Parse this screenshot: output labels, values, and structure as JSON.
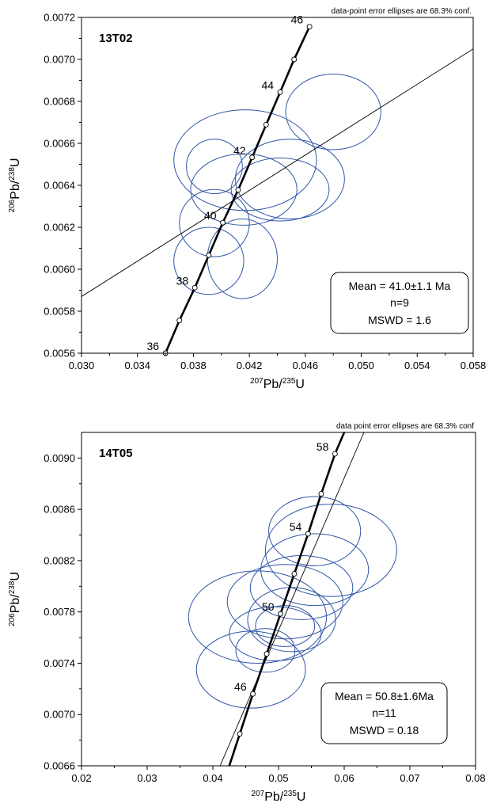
{
  "chart_data": [
    {
      "type": "scatter",
      "sample": "13T02",
      "note": "data-point error ellipses are 68.3% conf.",
      "xlabel": {
        "sup1": "207",
        "base1": "Pb/",
        "sup2": "235",
        "base2": "U"
      },
      "ylabel": {
        "sup1": "206",
        "base1": "Pb/",
        "sup2": "238",
        "base2": "U"
      },
      "xlim": [
        0.03,
        0.058
      ],
      "ylim": [
        0.0056,
        0.0072
      ],
      "xticks": [
        "0.030",
        "0.034",
        "0.038",
        "0.042",
        "0.046",
        "0.050",
        "0.054",
        "0.058"
      ],
      "yticks": [
        "0.0056",
        "0.0058",
        "0.0060",
        "0.0062",
        "0.0064",
        "0.0066",
        "0.0068",
        "0.0070",
        "0.0072"
      ],
      "concordia_ages": [
        {
          "age": "36",
          "x": 0.036,
          "y": 0.0056,
          "labeled": true
        },
        {
          "age": "37",
          "x": 0.037,
          "y": 0.005756,
          "labeled": false
        },
        {
          "age": "38",
          "x": 0.0381,
          "y": 0.005912,
          "labeled": true
        },
        {
          "age": "39",
          "x": 0.0391,
          "y": 0.006067,
          "labeled": false
        },
        {
          "age": "40",
          "x": 0.0401,
          "y": 0.006222,
          "labeled": true
        },
        {
          "age": "41",
          "x": 0.0412,
          "y": 0.006378,
          "labeled": false
        },
        {
          "age": "42",
          "x": 0.0422,
          "y": 0.006533,
          "labeled": true
        },
        {
          "age": "43",
          "x": 0.0432,
          "y": 0.006689,
          "labeled": false
        },
        {
          "age": "44",
          "x": 0.0442,
          "y": 0.006844,
          "labeled": true
        },
        {
          "age": "45",
          "x": 0.0452,
          "y": 0.007,
          "labeled": false
        },
        {
          "age": "46",
          "x": 0.0463,
          "y": 0.007156,
          "labeled": true
        }
      ],
      "discordia": [
        {
          "x": 0.03,
          "y": 0.00587
        },
        {
          "x": 0.058,
          "y": 0.00705
        }
      ],
      "ellipses": [
        {
          "cx": 0.0417,
          "cy": 0.00652,
          "rx": 0.0051,
          "ry": 0.00024
        },
        {
          "cx": 0.0416,
          "cy": 0.00638,
          "rx": 0.0038,
          "ry": 0.00017
        },
        {
          "cx": 0.0449,
          "cy": 0.00643,
          "rx": 0.0039,
          "ry": 0.00019
        },
        {
          "cx": 0.0442,
          "cy": 0.00638,
          "rx": 0.0035,
          "ry": 0.00015
        },
        {
          "cx": 0.048,
          "cy": 0.00675,
          "rx": 0.0034,
          "ry": 0.00018
        },
        {
          "cx": 0.0395,
          "cy": 0.00622,
          "rx": 0.0025,
          "ry": 0.00016
        },
        {
          "cx": 0.0415,
          "cy": 0.00605,
          "rx": 0.0025,
          "ry": 0.00019
        },
        {
          "cx": 0.0391,
          "cy": 0.00604,
          "rx": 0.0025,
          "ry": 0.00016
        },
        {
          "cx": 0.0395,
          "cy": 0.00649,
          "rx": 0.002,
          "ry": 0.00013
        }
      ],
      "result": {
        "line1": "Mean = 41.0±1.1 Ma",
        "line2": "n=9",
        "line3": "MSWD = 1.6"
      },
      "colors": {
        "ellipse": "#3055a8",
        "axes": "#000000"
      }
    },
    {
      "type": "scatter",
      "sample": "14T05",
      "note": "data point error ellipses are 68.3% conf",
      "xlabel": {
        "sup1": "207",
        "base1": "Pb/",
        "sup2": "235",
        "base2": "U"
      },
      "ylabel": {
        "sup1": "206",
        "base1": "Pb/",
        "sup2": "238",
        "base2": "U"
      },
      "xlim": [
        0.02,
        0.08
      ],
      "ylim": [
        0.0066,
        0.0092
      ],
      "xticks": [
        "0.02",
        "0.03",
        "0.04",
        "0.05",
        "0.06",
        "0.07",
        "0.08"
      ],
      "yticks": [
        "0.0066",
        "0.0070",
        "0.0074",
        "0.0078",
        "0.0082",
        "0.0086",
        "0.0090"
      ],
      "concordia_ages": [
        {
          "age": "44",
          "x": 0.0441,
          "y": 0.006849,
          "labeled": false
        },
        {
          "age": "46",
          "x": 0.0461,
          "y": 0.007161,
          "labeled": true
        },
        {
          "age": "48",
          "x": 0.0482,
          "y": 0.007473,
          "labeled": false
        },
        {
          "age": "50",
          "x": 0.0503,
          "y": 0.007785,
          "labeled": true
        },
        {
          "age": "52",
          "x": 0.0524,
          "y": 0.008097,
          "labeled": false
        },
        {
          "age": "54",
          "x": 0.0545,
          "y": 0.008409,
          "labeled": true
        },
        {
          "age": "56",
          "x": 0.0565,
          "y": 0.008721,
          "labeled": false
        },
        {
          "age": "58",
          "x": 0.0586,
          "y": 0.009033,
          "labeled": true
        }
      ],
      "concordia_ends": [
        {
          "x": 0.0425,
          "y": 0.0066
        },
        {
          "x": 0.06,
          "y": 0.0092
        }
      ],
      "discordia": [
        {
          "x": 0.0411,
          "y": 0.0066
        },
        {
          "x": 0.063,
          "y": 0.0092
        }
      ],
      "ellipses": [
        {
          "cx": 0.0555,
          "cy": 0.00843,
          "rx": 0.007,
          "ry": 0.00027
        },
        {
          "cx": 0.058,
          "cy": 0.00828,
          "rx": 0.01,
          "ry": 0.00036
        },
        {
          "cx": 0.0555,
          "cy": 0.00813,
          "rx": 0.0082,
          "ry": 0.00028
        },
        {
          "cx": 0.0535,
          "cy": 0.00799,
          "rx": 0.0078,
          "ry": 0.00025
        },
        {
          "cx": 0.051,
          "cy": 0.00788,
          "rx": 0.0088,
          "ry": 0.00029
        },
        {
          "cx": 0.052,
          "cy": 0.00774,
          "rx": 0.0067,
          "ry": 0.00025
        },
        {
          "cx": 0.0468,
          "cy": 0.00776,
          "rx": 0.0105,
          "ry": 0.00036
        },
        {
          "cx": 0.0495,
          "cy": 0.00763,
          "rx": 0.007,
          "ry": 0.00021
        },
        {
          "cx": 0.048,
          "cy": 0.0075,
          "rx": 0.0045,
          "ry": 0.00017
        },
        {
          "cx": 0.0458,
          "cy": 0.00735,
          "rx": 0.0083,
          "ry": 0.0003
        },
        {
          "cx": 0.051,
          "cy": 0.00769,
          "rx": 0.0045,
          "ry": 0.00016
        }
      ],
      "result": {
        "line1": "Mean = 50.8±1.6Ma",
        "line2": "n=11",
        "line3": "MSWD = 0.18"
      },
      "colors": {
        "ellipse": "#3055a8",
        "axes": "#000000"
      }
    }
  ]
}
